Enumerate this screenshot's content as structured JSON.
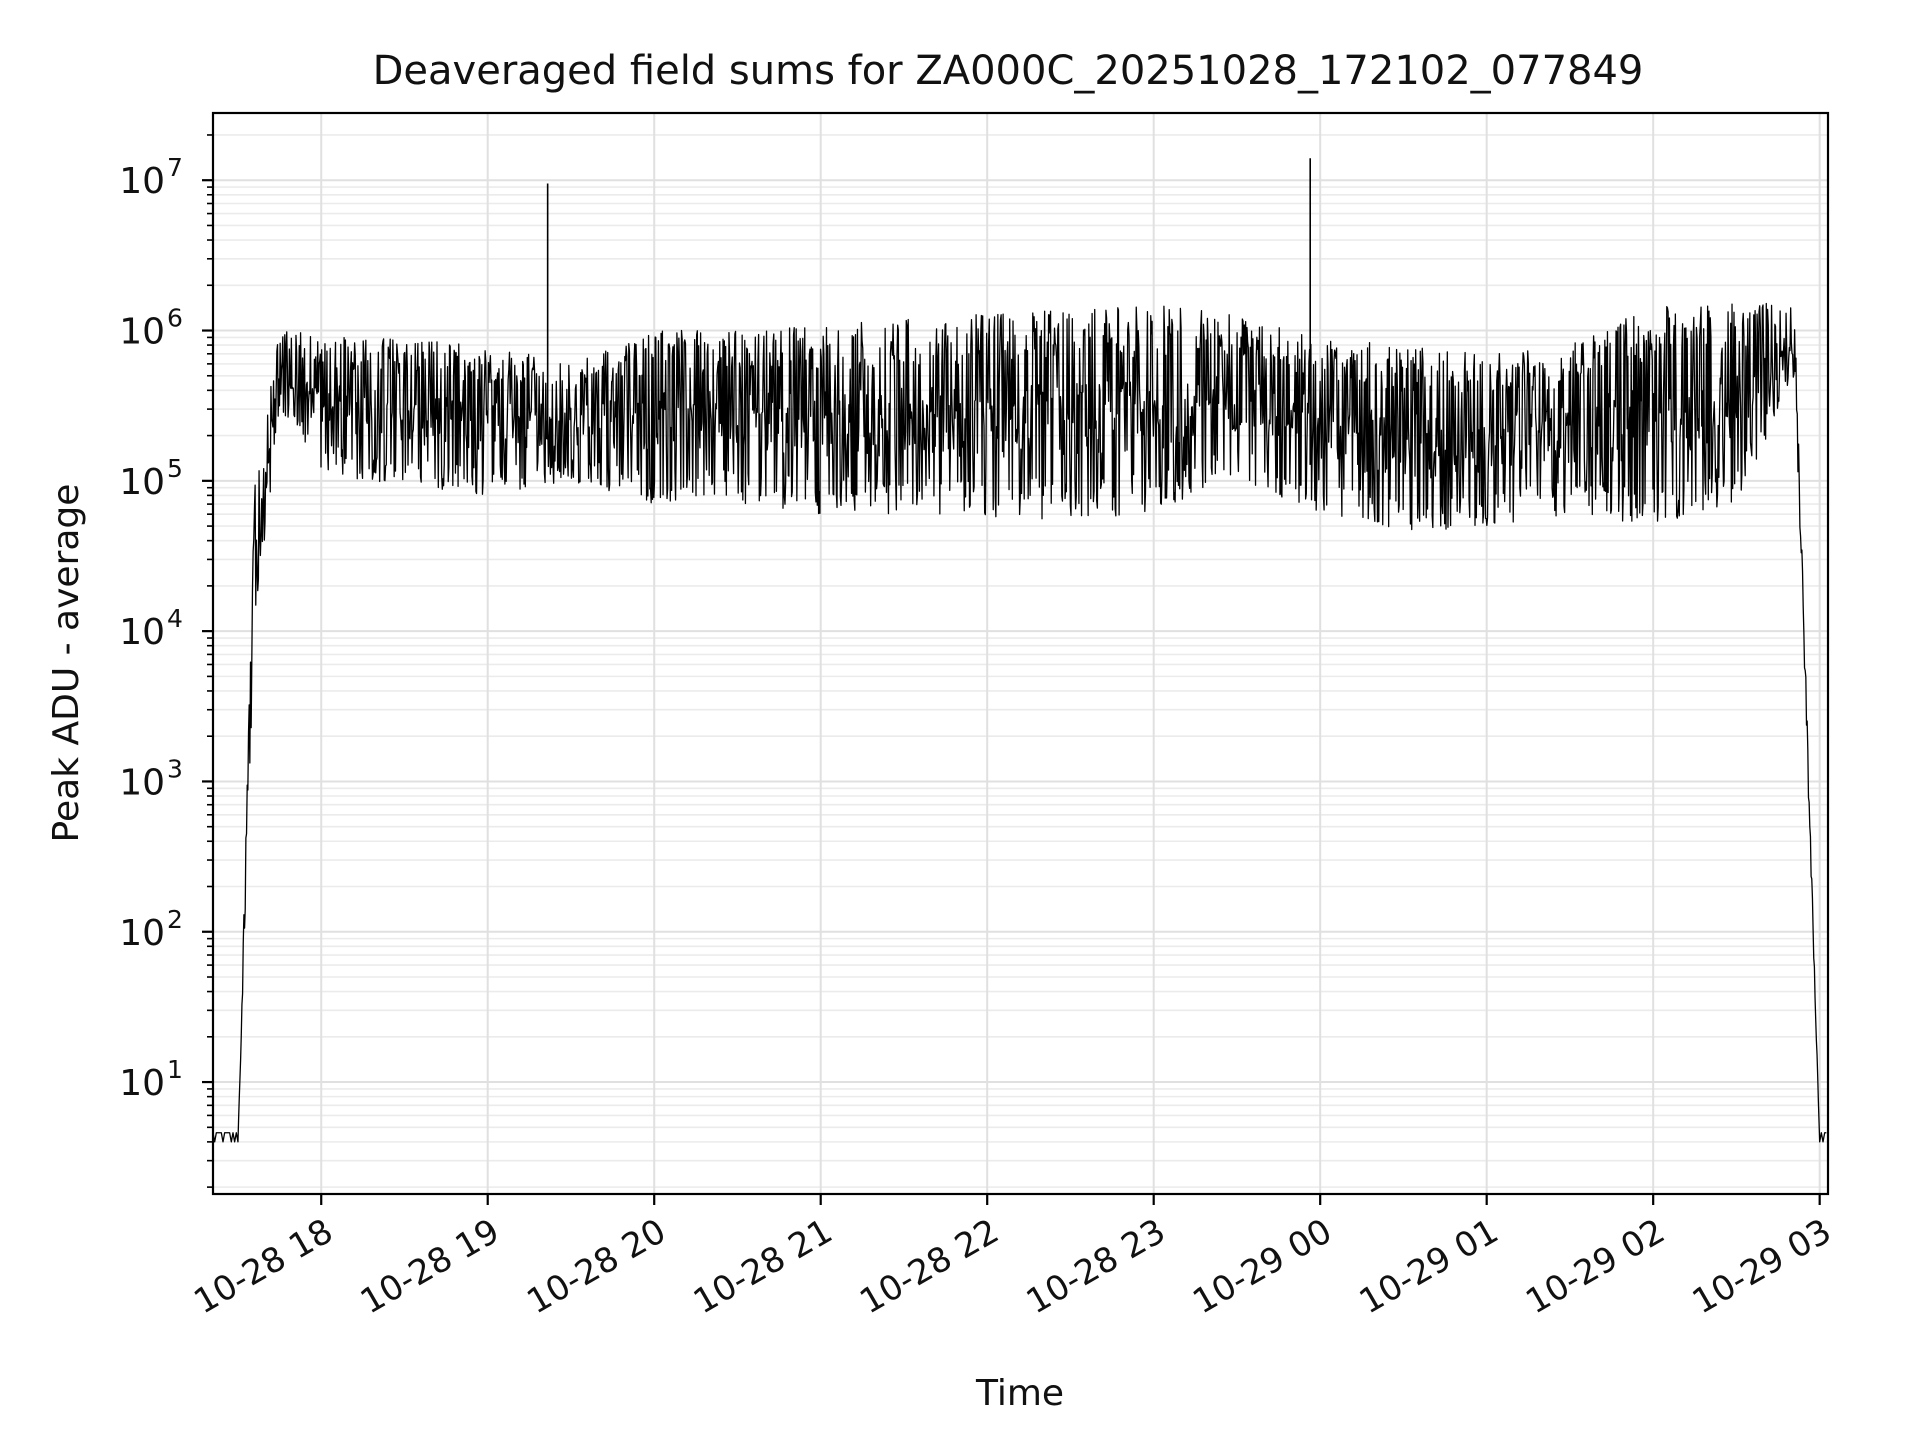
{
  "chart_data": {
    "type": "line",
    "title": "Deaveraged field sums for ZA000C_20251028_172102_077849",
    "xlabel": "Time",
    "ylabel": "Peak ADU - average",
    "yscale": "log",
    "ylim": [
      1.8,
      28000000
    ],
    "xlim_hours": [
      17.35,
      27.05
    ],
    "grid": true,
    "x_ticks": [
      {
        "label": "10-28 18",
        "hour": 18
      },
      {
        "label": "10-28 19",
        "hour": 19
      },
      {
        "label": "10-28 20",
        "hour": 20
      },
      {
        "label": "10-28 21",
        "hour": 21
      },
      {
        "label": "10-28 22",
        "hour": 22
      },
      {
        "label": "10-28 23",
        "hour": 23
      },
      {
        "label": "10-29 00",
        "hour": 24
      },
      {
        "label": "10-29 01",
        "hour": 25
      },
      {
        "label": "10-29 02",
        "hour": 26
      },
      {
        "label": "10-29 03",
        "hour": 27
      }
    ],
    "y_ticks": [
      {
        "base": "10",
        "exp": "1",
        "value": 10
      },
      {
        "base": "10",
        "exp": "2",
        "value": 100
      },
      {
        "base": "10",
        "exp": "3",
        "value": 1000
      },
      {
        "base": "10",
        "exp": "4",
        "value": 10000
      },
      {
        "base": "10",
        "exp": "5",
        "value": 100000
      },
      {
        "base": "10",
        "exp": "6",
        "value": 1000000
      },
      {
        "base": "10",
        "exp": "7",
        "value": 10000000
      }
    ],
    "series": [
      {
        "name": "deaveraged field sum",
        "color": "#000000",
        "envelope": [
          {
            "hour": 17.5,
            "low": 4,
            "high": 4
          },
          {
            "hour": 17.6,
            "low": 10000,
            "high": 100000
          },
          {
            "hour": 17.75,
            "low": 300000,
            "high": 1100000
          },
          {
            "hour": 18.0,
            "low": 120000,
            "high": 900000
          },
          {
            "hour": 18.4,
            "low": 90000,
            "high": 900000
          },
          {
            "hour": 19.0,
            "low": 80000,
            "high": 800000
          },
          {
            "hour": 19.5,
            "low": 100000,
            "high": 600000
          },
          {
            "hour": 20.0,
            "low": 70000,
            "high": 1000000
          },
          {
            "hour": 20.5,
            "low": 70000,
            "high": 1000000
          },
          {
            "hour": 21.0,
            "low": 60000,
            "high": 1100000
          },
          {
            "hour": 21.5,
            "low": 60000,
            "high": 1200000
          },
          {
            "hour": 22.0,
            "low": 55000,
            "high": 1300000
          },
          {
            "hour": 22.5,
            "low": 55000,
            "high": 1400000
          },
          {
            "hour": 23.0,
            "low": 60000,
            "high": 1500000
          },
          {
            "hour": 23.5,
            "low": 100000,
            "high": 1300000
          },
          {
            "hour": 24.0,
            "low": 60000,
            "high": 900000
          },
          {
            "hour": 24.5,
            "low": 40000,
            "high": 800000
          },
          {
            "hour": 25.0,
            "low": 50000,
            "high": 700000
          },
          {
            "hour": 25.5,
            "low": 60000,
            "high": 800000
          },
          {
            "hour": 26.0,
            "low": 50000,
            "high": 1500000
          },
          {
            "hour": 26.5,
            "low": 70000,
            "high": 1500000
          },
          {
            "hour": 26.85,
            "low": 500000,
            "high": 1600000
          },
          {
            "hour": 27.0,
            "low": 4,
            "high": 4
          }
        ],
        "spikes": [
          {
            "hour": 19.36,
            "value": 9500000
          },
          {
            "hour": 23.94,
            "value": 14000000
          }
        ],
        "baseline": 4
      }
    ]
  }
}
